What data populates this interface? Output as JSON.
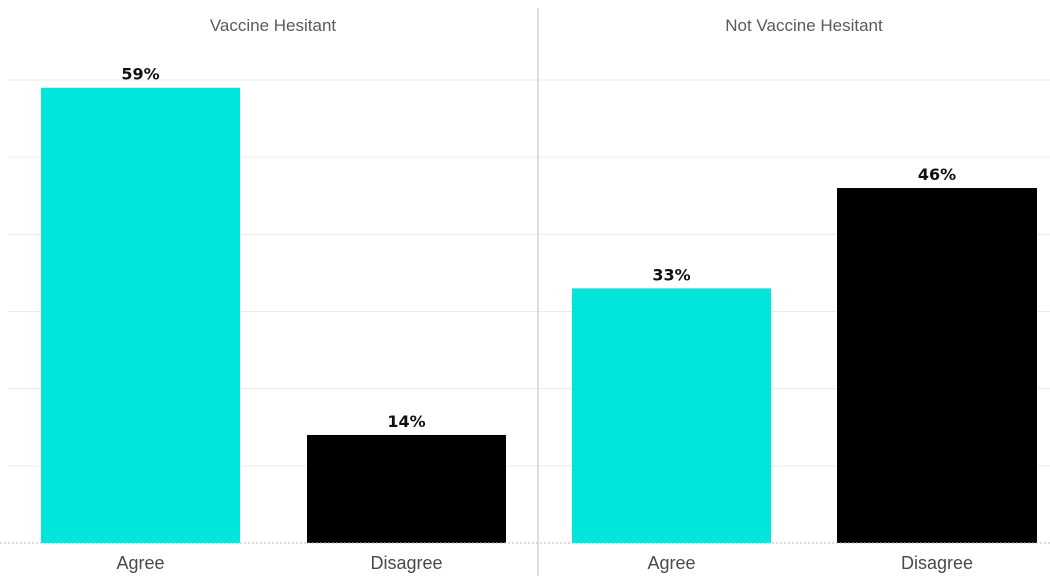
{
  "chart_data": {
    "type": "bar",
    "ylim": [
      0,
      60
    ],
    "grid": true,
    "value_suffix": "%",
    "panels": [
      {
        "title": "Vaccine Hesitant",
        "categories": [
          "Agree",
          "Disagree"
        ],
        "values": [
          59,
          14
        ],
        "colors": [
          "#00e6dc",
          "#000000"
        ]
      },
      {
        "title": "Not Vaccine Hesitant",
        "categories": [
          "Agree",
          "Disagree"
        ],
        "values": [
          33,
          46
        ],
        "colors": [
          "#00e6dc",
          "#000000"
        ]
      }
    ]
  }
}
